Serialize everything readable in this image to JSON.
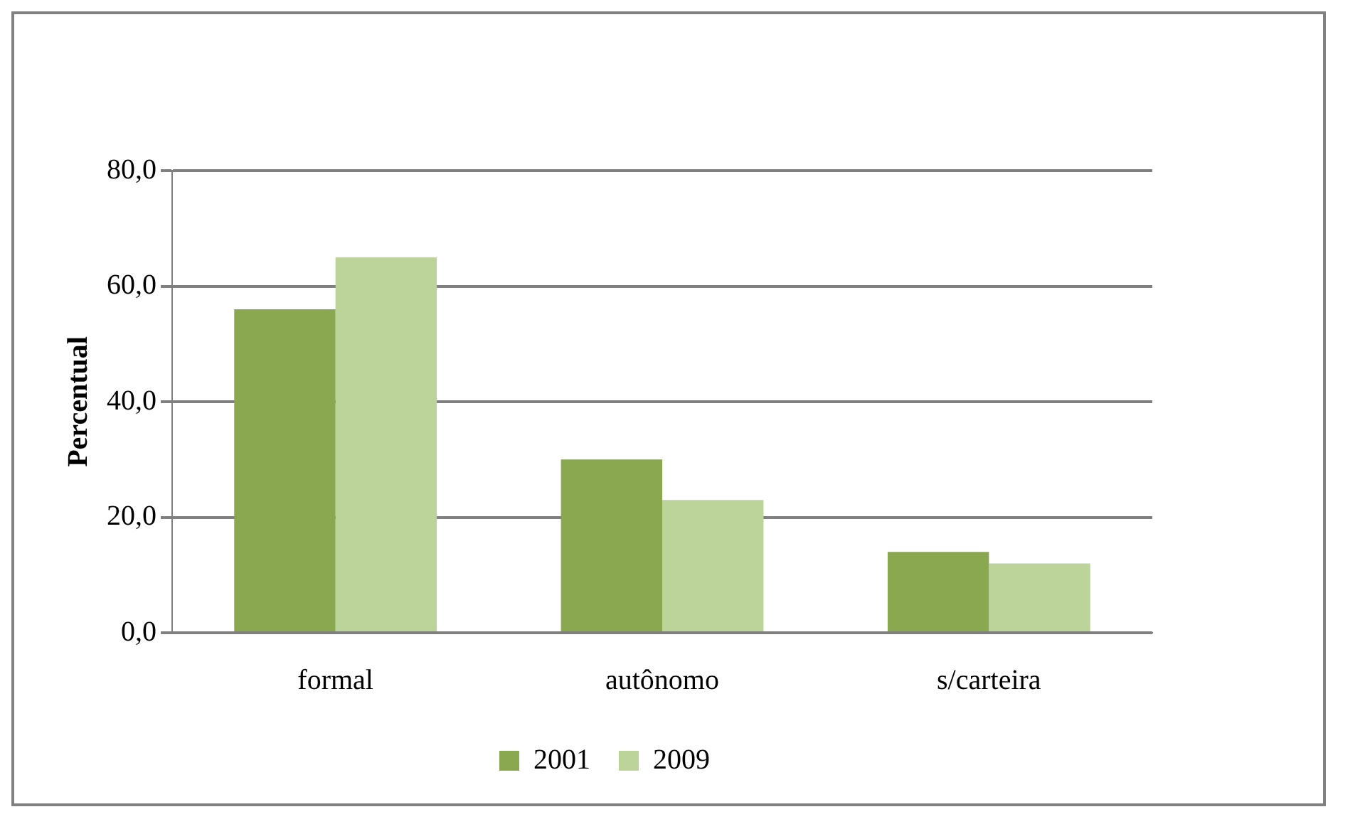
{
  "chart_data": {
    "type": "bar",
    "ylabel": "Percentual",
    "categories": [
      "formal",
      "autônomo",
      "s/carteira"
    ],
    "series": [
      {
        "name": "2001",
        "color": "#8aa84f",
        "values": [
          56,
          30,
          14
        ]
      },
      {
        "name": "2009",
        "color": "#bcd39a",
        "values": [
          65,
          23,
          12
        ]
      }
    ],
    "ylim": [
      0,
      80
    ],
    "yticks": [
      {
        "value": 0,
        "label": "0,0"
      },
      {
        "value": 20,
        "label": "20,0"
      },
      {
        "value": 40,
        "label": "40,0"
      },
      {
        "value": 60,
        "label": "60,0"
      },
      {
        "value": 80,
        "label": "80,0"
      }
    ],
    "grid": "y",
    "legend": "bottom"
  }
}
